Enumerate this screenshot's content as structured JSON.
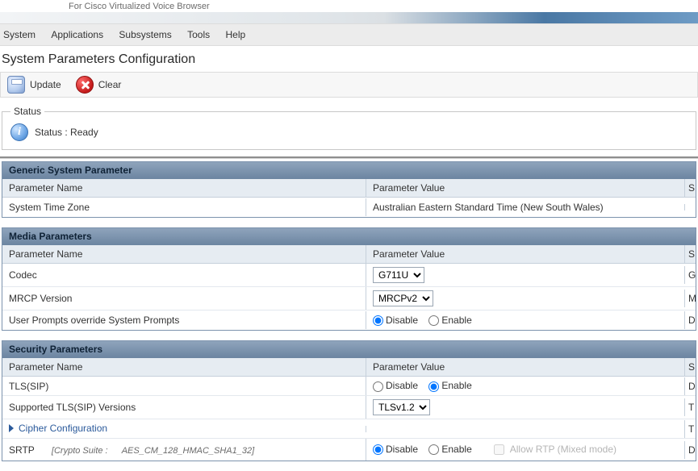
{
  "branding": {
    "subtitle": "For Cisco Virtualized Voice Browser"
  },
  "menu": {
    "items": [
      "System",
      "Applications",
      "Subsystems",
      "Tools",
      "Help"
    ]
  },
  "page": {
    "title": "System Parameters Configuration"
  },
  "toolbar": {
    "update": "Update",
    "clear": "Clear"
  },
  "status": {
    "legend": "Status",
    "text": "Status : Ready",
    "icon_glyph": "i"
  },
  "columns": {
    "name": "Parameter Name",
    "value": "Parameter Value",
    "suffix": "S"
  },
  "generic": {
    "title": "Generic System Parameter",
    "rows": [
      {
        "name": "System Time Zone",
        "value": "Australian Eastern Standard Time (New South Wales)",
        "suffix": ""
      }
    ]
  },
  "media": {
    "title": "Media Parameters",
    "codec": {
      "label": "Codec",
      "selected": "G711U",
      "options": [
        "G711U"
      ],
      "suffix": "G"
    },
    "mrcp": {
      "label": "MRCP Version",
      "selected": "MRCPv2",
      "options": [
        "MRCPv2"
      ],
      "suffix": "M"
    },
    "override": {
      "label": "User Prompts override System Prompts",
      "disable": "Disable",
      "enable": "Enable",
      "value": "Disable",
      "suffix": "D"
    }
  },
  "security": {
    "title": "Security Parameters",
    "tls": {
      "label": "TLS(SIP)",
      "disable": "Disable",
      "enable": "Enable",
      "value": "Enable",
      "suffix": "D"
    },
    "versions": {
      "label": "Supported TLS(SIP) Versions",
      "selected": "TLSv1.2",
      "options": [
        "TLSv1.2"
      ],
      "suffix": "T"
    },
    "cipher": {
      "label": "Cipher Configuration",
      "suffix": "T"
    },
    "srtp": {
      "label": "SRTP",
      "crypto_prefix": "[Crypto Suite :",
      "crypto_value": "AES_CM_128_HMAC_SHA1_32]",
      "disable": "Disable",
      "enable": "Enable",
      "value": "Disable",
      "allow_rtp": "Allow RTP (Mixed mode)",
      "suffix": "D"
    }
  }
}
